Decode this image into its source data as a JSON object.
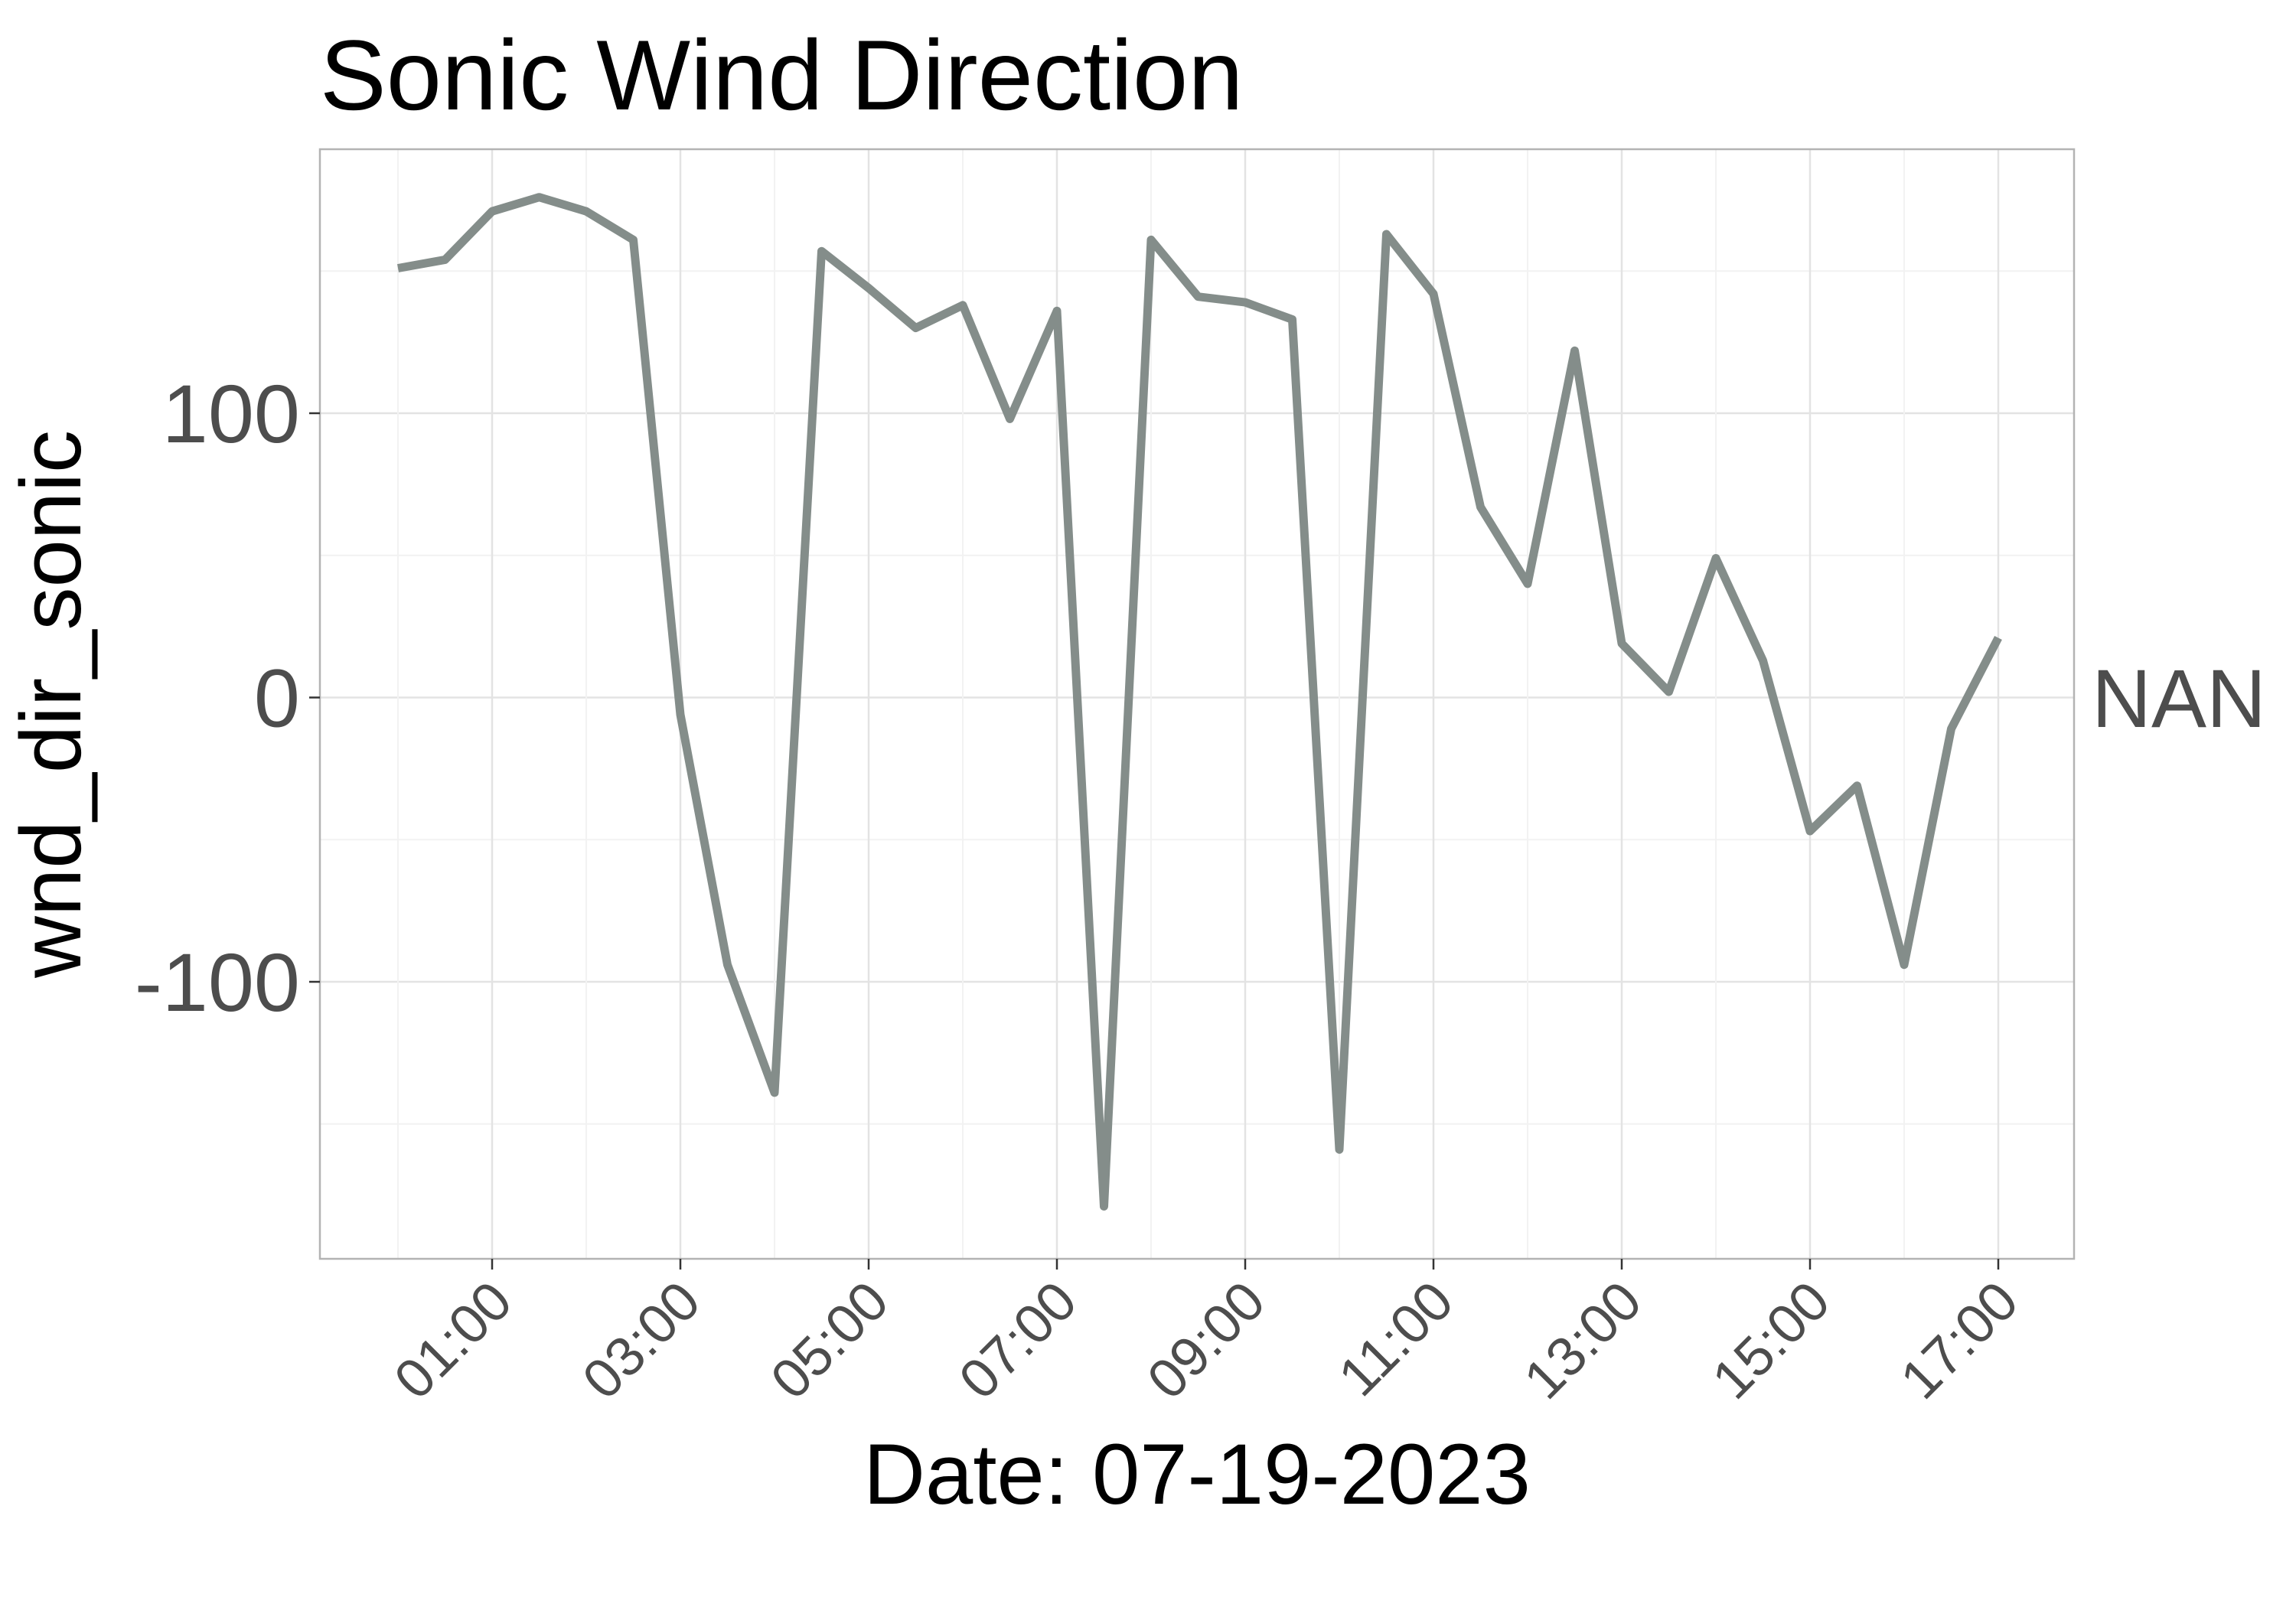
{
  "chart_data": {
    "type": "line",
    "title": "Sonic Wind Direction",
    "xlabel": "Date: 07-19-2023",
    "ylabel": "wnd_dir_sonic",
    "x_ticks": [
      "01:00",
      "03:00",
      "05:00",
      "07:00",
      "09:00",
      "11:00",
      "13:00",
      "15:00",
      "17:00"
    ],
    "y_ticks": [
      100,
      0,
      -100
    ],
    "xlim": [
      "00:00",
      "17:00"
    ],
    "ylim": [
      -196,
      192
    ],
    "grid": true,
    "legend_position": "right",
    "series": [
      {
        "name": "NAN",
        "color": "#848d8a",
        "x": [
          "00:00",
          "00:30",
          "01:00",
          "01:30",
          "02:00",
          "02:30",
          "03:00",
          "03:30",
          "04:00",
          "04:30",
          "05:00",
          "05:30",
          "06:00",
          "06:30",
          "07:00",
          "07:30",
          "08:00",
          "08:30",
          "09:00",
          "09:30",
          "10:00",
          "10:30",
          "11:00",
          "11:30",
          "12:00",
          "12:30",
          "13:00",
          "13:30",
          "14:00",
          "14:30",
          "15:00",
          "15:30",
          "16:00",
          "16:30",
          "17:00"
        ],
        "values": [
          151,
          154,
          171,
          176,
          171,
          161,
          -6,
          -94,
          -139,
          157,
          144,
          130,
          138,
          98,
          136,
          -179,
          161,
          141,
          139,
          133,
          -159,
          163,
          142,
          67,
          40,
          122,
          19,
          2,
          49,
          13,
          -47,
          -31,
          -94,
          -11,
          21
        ]
      }
    ]
  }
}
